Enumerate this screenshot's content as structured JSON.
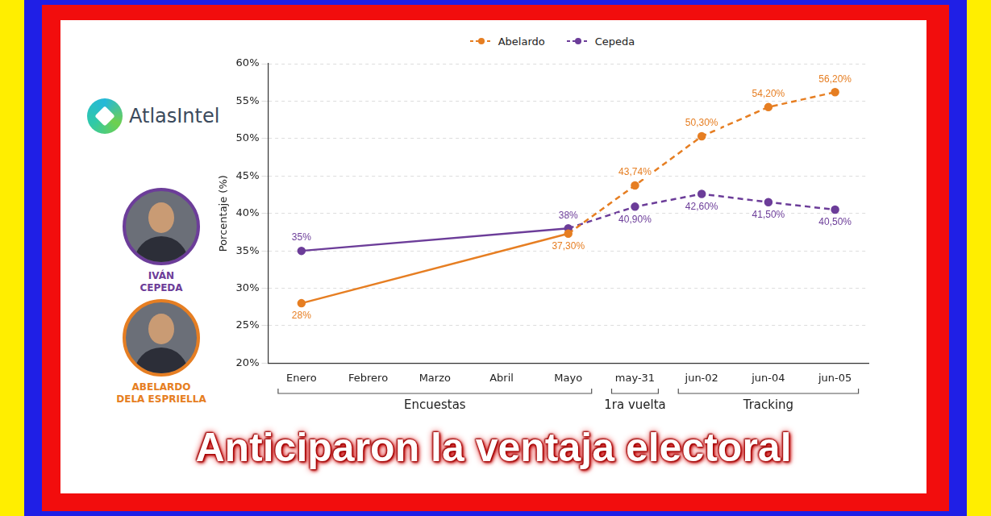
{
  "chart_data": {
    "type": "line",
    "logo": "AtlasIntel",
    "headline": "Anticiparon la ventaja electoral",
    "candidates": [
      {
        "name": "IVÁN CEPEDA",
        "color": "#6c3d99"
      },
      {
        "name": "ABELARDO DELA ESPRIELLA",
        "color": "#e67e22"
      }
    ],
    "y_label": "Porcentaje (%)",
    "categories": [
      "Enero",
      "Febrero",
      "Marzo",
      "Abril",
      "Mayo",
      "may-31",
      "jun-02",
      "jun-04",
      "jun-05"
    ],
    "groups": [
      {
        "label": "Encuestas",
        "from": "Enero",
        "to": "Mayo"
      },
      {
        "label": "1ra vuelta",
        "from": "may-31",
        "to": "may-31"
      },
      {
        "label": "Tracking",
        "from": "jun-02",
        "to": "jun-05"
      }
    ],
    "series": [
      {
        "name": "Abelardo",
        "color": "#e67e22",
        "line_style": "dashed",
        "marker": "circle",
        "values": [
          28,
          null,
          null,
          null,
          37.3,
          43.74,
          50.3,
          54.2,
          56.2
        ],
        "value_labels": [
          "28%",
          null,
          null,
          null,
          "37,30%",
          "43,74%",
          "50,30%",
          "54,20%",
          "56,20%"
        ]
      },
      {
        "name": "Cepeda",
        "color": "#6c3d99",
        "line_style": "dashed",
        "marker": "circle",
        "values": [
          35,
          null,
          null,
          null,
          38,
          40.9,
          42.6,
          41.5,
          40.5
        ],
        "value_labels": [
          "35%",
          null,
          null,
          null,
          "38%",
          "40,90%",
          "42,60%",
          "41,50%",
          "40,50%"
        ]
      }
    ],
    "ylim": [
      20,
      60
    ],
    "yticks": [
      {
        "value": 20,
        "label": "20%"
      },
      {
        "value": 25,
        "label": "25%"
      },
      {
        "value": 30,
        "label": "30%"
      },
      {
        "value": 35,
        "label": "35%"
      },
      {
        "value": 40,
        "label": "40%"
      },
      {
        "value": 45,
        "label": "45%"
      },
      {
        "value": 50,
        "label": "50%"
      },
      {
        "value": 55,
        "label": "55%"
      },
      {
        "value": 60,
        "label": "60%"
      }
    ],
    "grid": true,
    "legend": "top",
    "data_labels": true
  }
}
